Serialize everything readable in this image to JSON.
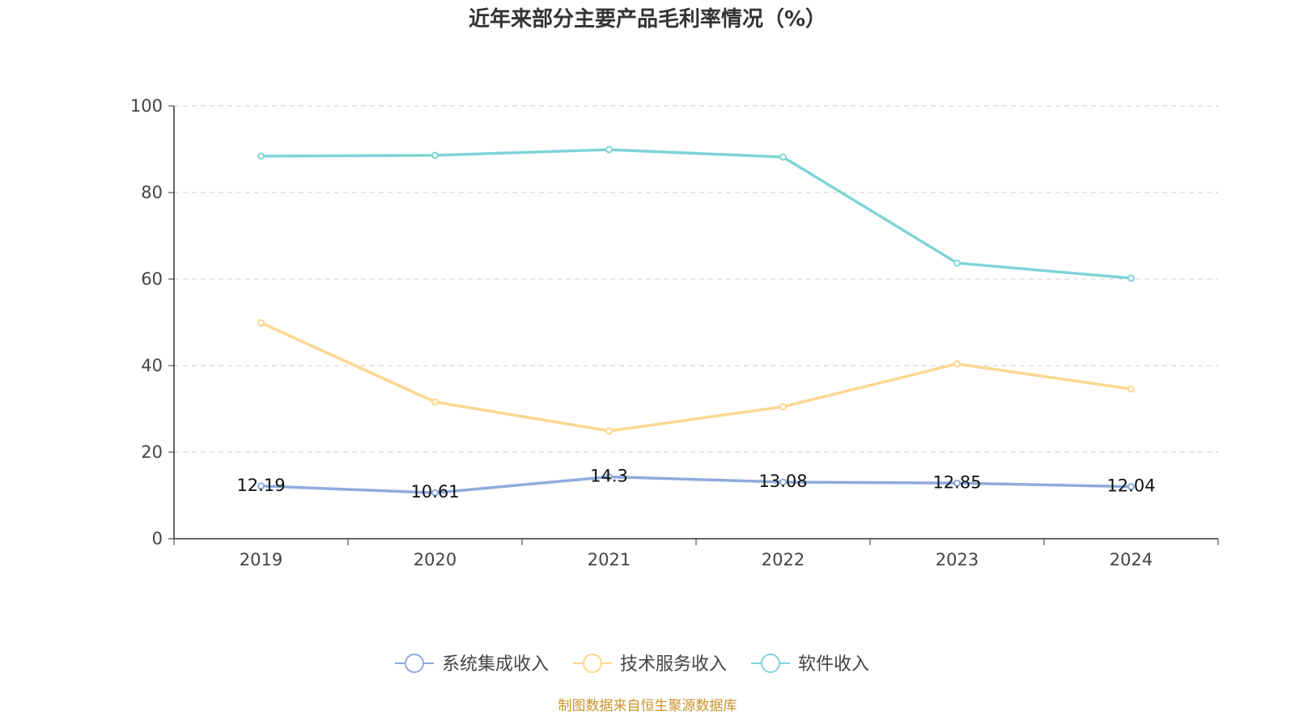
{
  "chart_data": {
    "type": "line",
    "title": "近年来部分主要产品毛利率情况（%）",
    "categories": [
      "2019",
      "2020",
      "2021",
      "2022",
      "2023",
      "2024"
    ],
    "ylim": [
      0,
      100
    ],
    "yticks": [
      0,
      20,
      40,
      60,
      80,
      100
    ],
    "grid": true,
    "legend_position": "bottom",
    "series": [
      {
        "name": "系统集成收入",
        "color": "#8fabdc",
        "values": [
          12.19,
          10.61,
          14.3,
          13.08,
          12.85,
          12.04
        ],
        "labels": [
          "12.19",
          "10.61",
          "14.3",
          "13.08",
          "12.85",
          "12.04"
        ]
      },
      {
        "name": "技术服务收入",
        "color": "#fdd68f",
        "values": [
          49.9,
          31.6,
          24.9,
          30.5,
          40.4,
          34.6
        ]
      },
      {
        "name": "软件收入",
        "color": "#80d4d6",
        "values": [
          88.4,
          88.6,
          89.9,
          88.2,
          63.7,
          60.2
        ]
      }
    ],
    "source": "制图数据来自恒生聚源数据库"
  }
}
